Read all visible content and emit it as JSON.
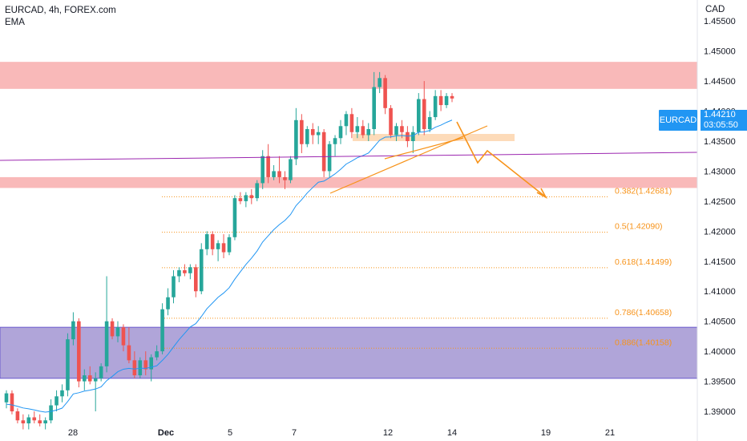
{
  "header": {
    "symbol_line": "EURCAD, 4h, FOREX.com",
    "indicator": "EMA"
  },
  "axis": {
    "currency": "CAD"
  },
  "badge": {
    "symbol": "EURCAD"
  },
  "price_label": {
    "price": "1.44210",
    "countdown": "03:05:50"
  },
  "colors": {
    "bull": "#26a69a",
    "bear": "#ef5350",
    "ema": "#2196f3",
    "resistance": "#f9b5b5",
    "demand": "#9c8fd0",
    "fib": "#f7931a",
    "trend": "#9c27b0",
    "arrow": "#f7931a"
  },
  "chart_data": {
    "type": "candlestick",
    "y_ticks": [
      "1.45500",
      "1.45000",
      "1.44500",
      "1.44000",
      "1.43500",
      "1.43000",
      "1.42500",
      "1.42000",
      "1.41500",
      "1.41000",
      "1.40500",
      "1.40000",
      "1.39500",
      "1.39000"
    ],
    "y_range": [
      1.388,
      1.4585
    ],
    "x_ticks": [
      "28",
      "Dec",
      "5",
      "7",
      "12",
      "14",
      "19",
      "21"
    ],
    "candles": [
      [
        1.3915,
        1.3935,
        1.3905,
        1.393
      ],
      [
        1.393,
        1.3935,
        1.3895,
        1.39
      ],
      [
        1.39,
        1.3905,
        1.388,
        1.3885
      ],
      [
        1.3885,
        1.3895,
        1.387,
        1.388
      ],
      [
        1.388,
        1.3895,
        1.387,
        1.389
      ],
      [
        1.389,
        1.39,
        1.388,
        1.3885
      ],
      [
        1.3885,
        1.3895,
        1.3875,
        1.388
      ],
      [
        1.388,
        1.389,
        1.387,
        1.3885
      ],
      [
        1.3885,
        1.392,
        1.388,
        1.391
      ],
      [
        1.391,
        1.3935,
        1.39,
        1.3925
      ],
      [
        1.3925,
        1.3945,
        1.3915,
        1.3935
      ],
      [
        1.3935,
        1.403,
        1.3925,
        1.402
      ],
      [
        1.402,
        1.4065,
        1.401,
        1.405
      ],
      [
        1.405,
        1.4055,
        1.394,
        1.395
      ],
      [
        1.395,
        1.397,
        1.3935,
        1.396
      ],
      [
        1.396,
        1.3975,
        1.3945,
        1.395
      ],
      [
        1.395,
        1.3965,
        1.39,
        1.3955
      ],
      [
        1.3955,
        1.398,
        1.395,
        1.3975
      ],
      [
        1.3975,
        1.4125,
        1.3965,
        1.405
      ],
      [
        1.405,
        1.4055,
        1.402,
        1.4025
      ],
      [
        1.4025,
        1.405,
        1.4015,
        1.404
      ],
      [
        1.404,
        1.4045,
        1.4,
        1.401
      ],
      [
        1.401,
        1.404,
        1.398,
        1.3985
      ],
      [
        1.3985,
        1.4,
        1.3955,
        1.396
      ],
      [
        1.396,
        1.399,
        1.3955,
        1.3985
      ],
      [
        1.3985,
        1.4,
        1.396,
        1.397
      ],
      [
        1.397,
        1.3995,
        1.395,
        1.399
      ],
      [
        1.399,
        1.401,
        1.3985,
        1.4
      ],
      [
        1.4,
        1.408,
        1.3995,
        1.407
      ],
      [
        1.407,
        1.4105,
        1.406,
        1.409
      ],
      [
        1.409,
        1.4135,
        1.408,
        1.4125
      ],
      [
        1.4125,
        1.414,
        1.4115,
        1.4135
      ],
      [
        1.4135,
        1.4145,
        1.4125,
        1.413
      ],
      [
        1.413,
        1.4145,
        1.412,
        1.414
      ],
      [
        1.414,
        1.4145,
        1.409,
        1.41
      ],
      [
        1.41,
        1.418,
        1.4095,
        1.417
      ],
      [
        1.417,
        1.42,
        1.416,
        1.4195
      ],
      [
        1.4195,
        1.42,
        1.416,
        1.417
      ],
      [
        1.417,
        1.4185,
        1.415,
        1.418
      ],
      [
        1.418,
        1.4195,
        1.4155,
        1.4165
      ],
      [
        1.4165,
        1.4195,
        1.416,
        1.419
      ],
      [
        1.419,
        1.426,
        1.4185,
        1.4255
      ],
      [
        1.4255,
        1.4265,
        1.4245,
        1.425
      ],
      [
        1.425,
        1.4265,
        1.424,
        1.426
      ],
      [
        1.426,
        1.427,
        1.4245,
        1.4255
      ],
      [
        1.4255,
        1.4285,
        1.425,
        1.428
      ],
      [
        1.428,
        1.4335,
        1.427,
        1.4325
      ],
      [
        1.4325,
        1.4345,
        1.428,
        1.429
      ],
      [
        1.429,
        1.431,
        1.4285,
        1.43
      ],
      [
        1.43,
        1.4325,
        1.428,
        1.429
      ],
      [
        1.429,
        1.43,
        1.427,
        1.4285
      ],
      [
        1.4285,
        1.4325,
        1.428,
        1.432
      ],
      [
        1.432,
        1.4405,
        1.431,
        1.4385
      ],
      [
        1.4385,
        1.4395,
        1.433,
        1.4345
      ],
      [
        1.4345,
        1.4375,
        1.434,
        1.437
      ],
      [
        1.437,
        1.438,
        1.4345,
        1.436
      ],
      [
        1.436,
        1.4375,
        1.4345,
        1.4365
      ],
      [
        1.4365,
        1.437,
        1.429,
        1.43
      ],
      [
        1.43,
        1.435,
        1.429,
        1.4345
      ],
      [
        1.4345,
        1.436,
        1.4325,
        1.4355
      ],
      [
        1.4355,
        1.4385,
        1.4345,
        1.4375
      ],
      [
        1.4375,
        1.44,
        1.436,
        1.4395
      ],
      [
        1.4395,
        1.4405,
        1.4355,
        1.4365
      ],
      [
        1.4365,
        1.439,
        1.4355,
        1.4375
      ],
      [
        1.4375,
        1.4385,
        1.4355,
        1.436
      ],
      [
        1.436,
        1.438,
        1.435,
        1.437
      ],
      [
        1.437,
        1.4465,
        1.436,
        1.444
      ],
      [
        1.444,
        1.4465,
        1.443,
        1.4455
      ],
      [
        1.4455,
        1.446,
        1.4395,
        1.4405
      ],
      [
        1.4405,
        1.441,
        1.4355,
        1.436
      ],
      [
        1.436,
        1.438,
        1.435,
        1.4375
      ],
      [
        1.4375,
        1.4385,
        1.4355,
        1.4365
      ],
      [
        1.4365,
        1.4375,
        1.434,
        1.435
      ],
      [
        1.435,
        1.4375,
        1.433,
        1.4365
      ],
      [
        1.4365,
        1.443,
        1.436,
        1.442
      ],
      [
        1.442,
        1.445,
        1.436,
        1.437
      ],
      [
        1.437,
        1.44,
        1.4365,
        1.439
      ],
      [
        1.439,
        1.4435,
        1.4385,
        1.4425
      ],
      [
        1.4425,
        1.4435,
        1.44,
        1.441
      ],
      [
        1.441,
        1.443,
        1.4405,
        1.4425
      ],
      [
        1.4425,
        1.443,
        1.4415,
        1.4421
      ]
    ],
    "zones": [
      {
        "name": "resistance",
        "y_top": 1.4482,
        "y_bottom": 1.4437
      },
      {
        "name": "support",
        "y_top": 1.429,
        "y_bottom": 1.4272
      },
      {
        "name": "small-resistance",
        "y_top": 1.4362,
        "y_bottom": 1.435
      },
      {
        "name": "demand",
        "y_top": 1.404,
        "y_bottom": 1.3955
      }
    ],
    "fib_levels": [
      {
        "label": "0.382(1.42681)",
        "price": 1.42681
      },
      {
        "label": "0.5(1.42090)",
        "price": 1.4209
      },
      {
        "label": "0.618(1.41499)",
        "price": 1.41499
      },
      {
        "label": "0.786(1.40658)",
        "price": 1.40658
      },
      {
        "label": "0.886(1.40158)",
        "price": 1.40158
      }
    ]
  }
}
